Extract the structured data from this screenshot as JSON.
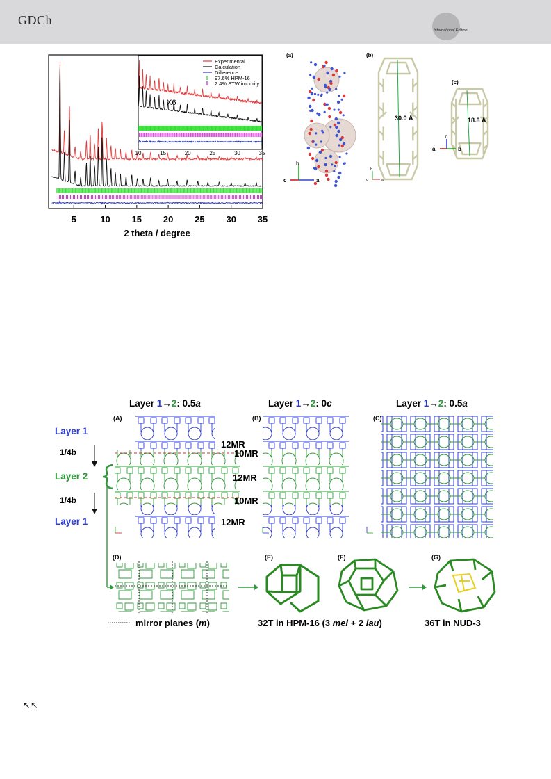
{
  "header": {
    "logo": "GDCh",
    "edition": "International Edition"
  },
  "figure1": {
    "xlabel": "2 theta / degree",
    "x_ticks": [
      "5",
      "10",
      "15",
      "20",
      "25",
      "30",
      "35"
    ],
    "inset_ticks": [
      "10",
      "15",
      "20",
      "25",
      "30",
      "35"
    ],
    "inset_scale": "X6",
    "legend": [
      "Experimental",
      "Calculation",
      "Difference",
      "97.6% HPM-16",
      "2.4% STW impurity"
    ],
    "colors": {
      "experimental": "#e23b3b",
      "calculation": "#111111",
      "difference": "#2233cc",
      "hpm16": "#22dd22",
      "stw": "#cc22cc"
    },
    "panels": {
      "a": "(a)",
      "b": "(b)",
      "c": "(c)"
    },
    "dim_b": "30.0 Å",
    "dim_c": "18.8 Å",
    "axis_letters": {
      "a": "a",
      "b": "b",
      "c": "c"
    }
  },
  "figure2": {
    "titles": [
      {
        "pre": "Layer ",
        "one": "1",
        "arrow": "→",
        "two": "2",
        "post": ": 0.5",
        "ital": "a"
      },
      {
        "pre": "Layer ",
        "one": "1",
        "arrow": "→",
        "two": "2",
        "post": ": 0",
        "ital": "c"
      },
      {
        "pre": "Layer ",
        "one": "1",
        "arrow": "→",
        "two": "2",
        "post": ": 0.5",
        "ital": "a"
      }
    ],
    "layer1": "Layer 1",
    "layer2": "Layer 2",
    "shift": "1/4b",
    "rings": [
      "12MR",
      "10MR",
      "12MR",
      "10MR",
      "12MR"
    ],
    "panel_labels": [
      "(A)",
      "(B)",
      "(C)",
      "(D)",
      "(E)",
      "(F)",
      "(G)"
    ],
    "mirror_caption": {
      "pre": "mirror planes (",
      "ital": "m",
      "post": ")"
    },
    "caption_32t": {
      "a": "32T in HPM-16 (3 ",
      "mel": "mel",
      "b": " + 2 ",
      "lau": "lau",
      "c": ")"
    },
    "caption_36t": "36T in NUD-3",
    "colors": {
      "layer1": "#2e3ccf",
      "layer2": "#2f9a3a",
      "cage": "#2a8a22",
      "highlight": "#e8d020"
    }
  },
  "footer": {
    "nav": "↖↖"
  }
}
